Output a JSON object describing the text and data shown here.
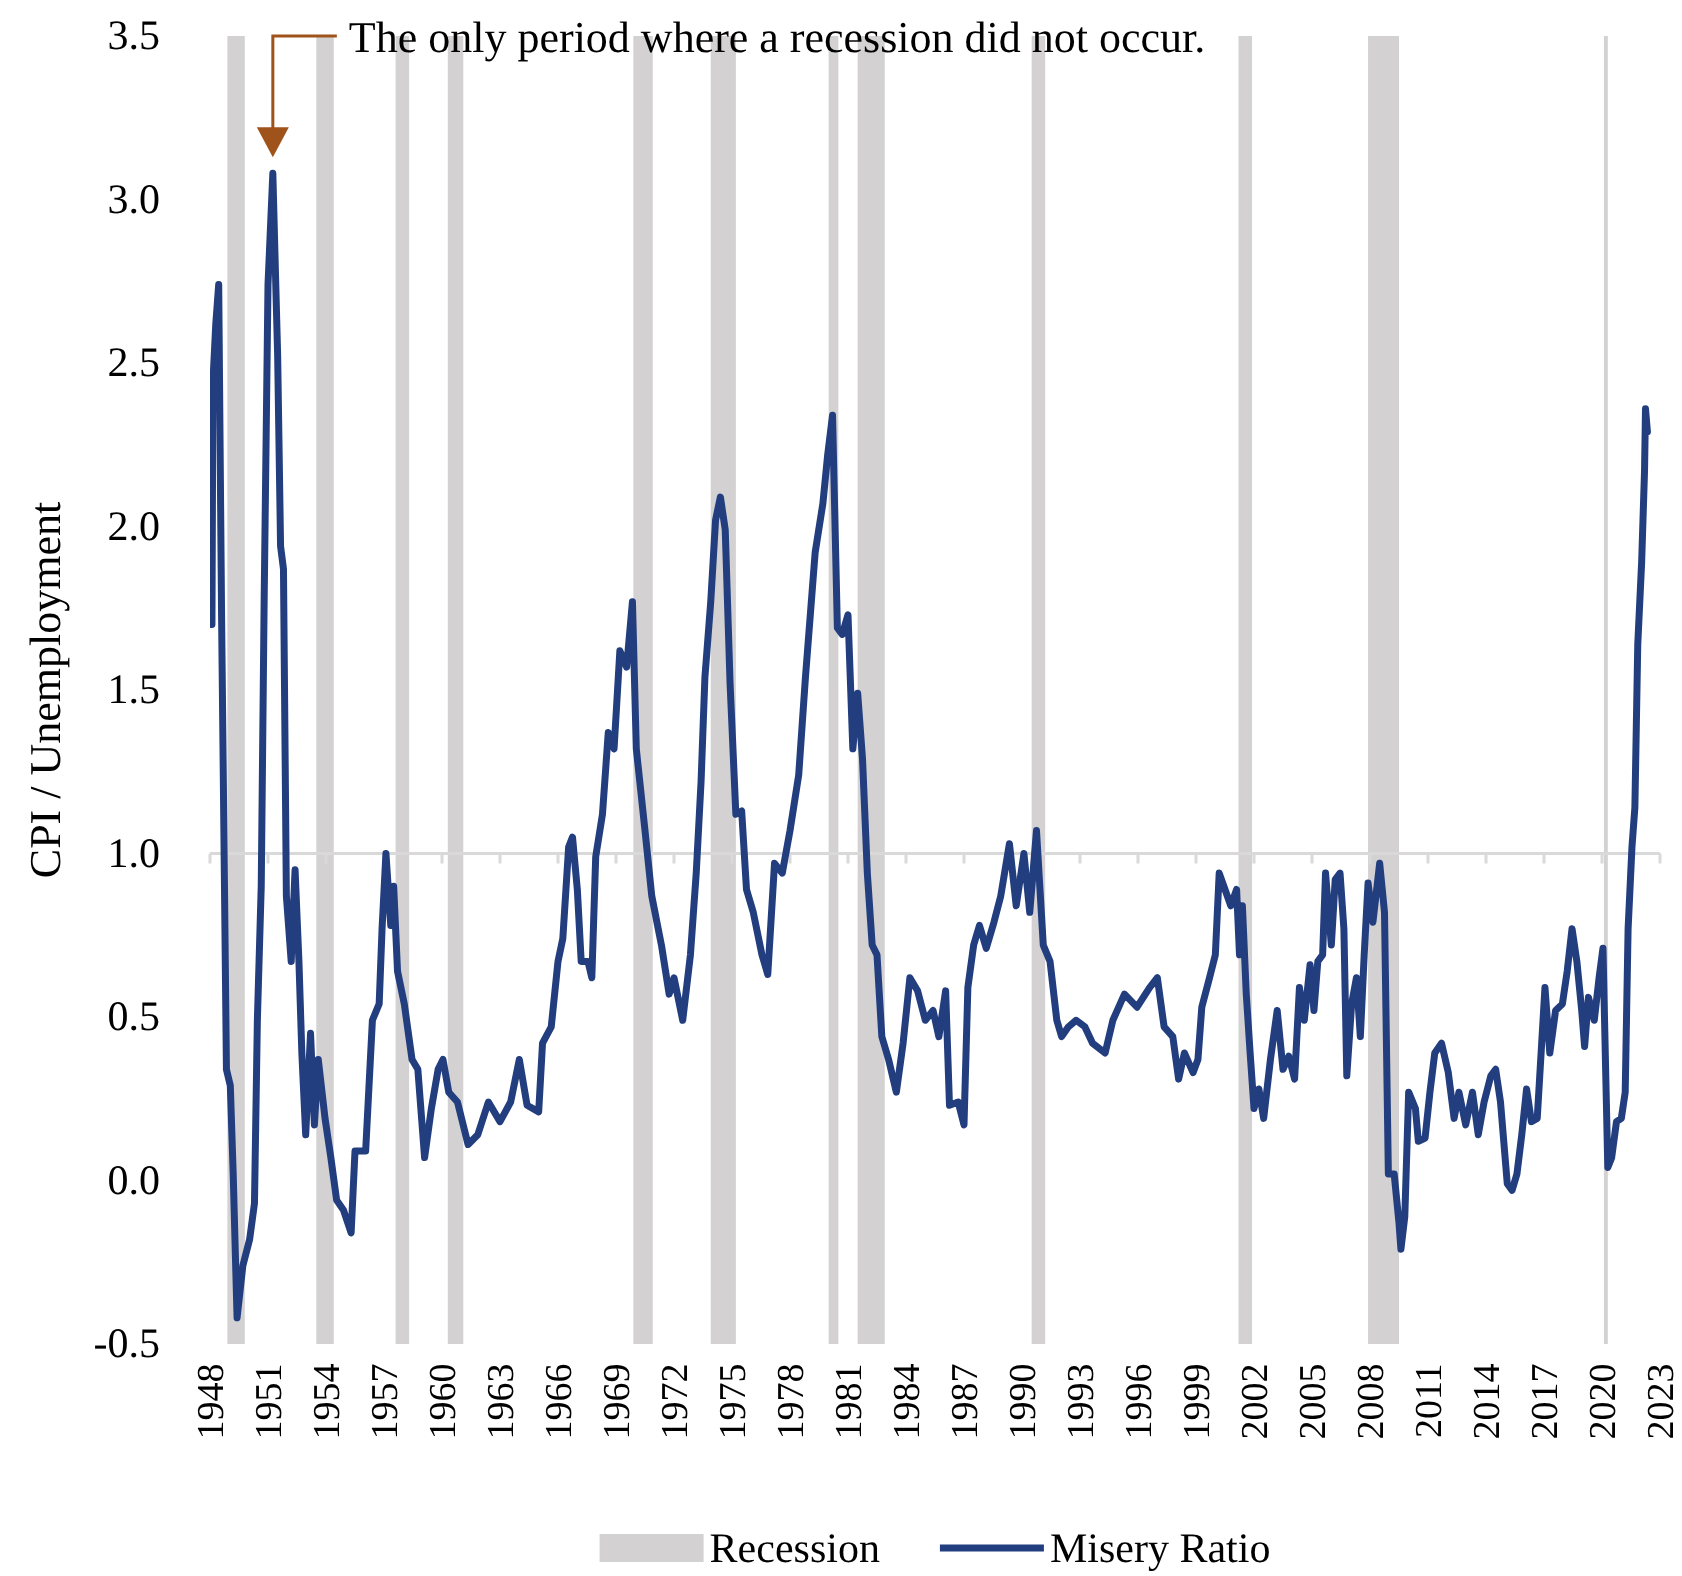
{
  "chart_data": {
    "type": "line",
    "ylabel": "CPI / Unemployment",
    "xlim": [
      1948,
      2023
    ],
    "xticks": [
      1948,
      1951,
      1954,
      1957,
      1960,
      1963,
      1966,
      1969,
      1972,
      1975,
      1978,
      1981,
      1984,
      1987,
      1990,
      1993,
      1996,
      1999,
      2002,
      2005,
      2008,
      2011,
      2014,
      2017,
      2020,
      2023
    ],
    "ylim": [
      -0.5,
      3.5
    ],
    "yticks": [
      {
        "value": -0.5,
        "label": "-0.5"
      },
      {
        "value": 0,
        "label": "0.0"
      },
      {
        "value": 0.5,
        "label": "0.5"
      },
      {
        "value": 1,
        "label": "1.0"
      },
      {
        "value": 1.5,
        "label": "1.5"
      },
      {
        "value": 2,
        "label": "2.0"
      },
      {
        "value": 2.5,
        "label": "2.5"
      },
      {
        "value": 3,
        "label": "3.0"
      },
      {
        "value": 3.5,
        "label": "3.5"
      }
    ],
    "grid": false,
    "legend": "bottom",
    "ref_lines": [
      {
        "axis": "y",
        "value": 1,
        "color": "#d9d9d9"
      }
    ],
    "bands": [
      {
        "axis": "x",
        "from": 1948.9,
        "to": 1949.8,
        "label": "Recession",
        "color": "#d3d1d2"
      },
      {
        "axis": "x",
        "from": 1953.5,
        "to": 1954.4,
        "color": "#d3d1d2"
      },
      {
        "axis": "x",
        "from": 1957.6,
        "to": 1958.3,
        "color": "#d3d1d2"
      },
      {
        "axis": "x",
        "from": 1960.3,
        "to": 1961.1,
        "color": "#d3d1d2"
      },
      {
        "axis": "x",
        "from": 1969.9,
        "to": 1970.9,
        "color": "#d3d1d2"
      },
      {
        "axis": "x",
        "from": 1973.9,
        "to": 1975.2,
        "color": "#d3d1d2"
      },
      {
        "axis": "x",
        "from": 1980.0,
        "to": 1980.5,
        "color": "#d3d1d2"
      },
      {
        "axis": "x",
        "from": 1981.5,
        "to": 1982.9,
        "color": "#d3d1d2"
      },
      {
        "axis": "x",
        "from": 1990.5,
        "to": 1991.2,
        "color": "#d3d1d2"
      },
      {
        "axis": "x",
        "from": 2001.2,
        "to": 2001.9,
        "color": "#d3d1d2"
      },
      {
        "axis": "x",
        "from": 2007.9,
        "to": 2009.5,
        "color": "#d3d1d2"
      },
      {
        "axis": "x",
        "from": 2020.1,
        "to": 2020.3,
        "color": "#d3d1d2"
      }
    ],
    "annotations": [
      "The only period where a recession did not occur."
    ],
    "series": [
      {
        "name": "Misery Ratio",
        "color": "#233e7e",
        "x": [
          1948.1,
          1948.15,
          1948.3,
          1948.45,
          1948.6,
          1948.85,
          1949.05,
          1949.2,
          1949.4,
          1949.7,
          1950.05,
          1950.3,
          1950.45,
          1950.65,
          1950.8,
          1951.0,
          1951.25,
          1951.5,
          1951.65,
          1951.8,
          1951.95,
          1952.2,
          1952.4,
          1952.6,
          1952.75,
          1952.95,
          1953.2,
          1953.4,
          1953.6,
          1953.95,
          1954.25,
          1954.55,
          1954.9,
          1955.3,
          1955.5,
          1956.05,
          1956.4,
          1956.75,
          1956.9,
          1957.1,
          1957.35,
          1957.5,
          1957.7,
          1958.05,
          1958.45,
          1958.75,
          1959.1,
          1959.45,
          1959.8,
          1960.05,
          1960.35,
          1960.8,
          1961.35,
          1961.85,
          1962.4,
          1963.0,
          1963.55,
          1964.0,
          1964.4,
          1965.0,
          1965.2,
          1965.65,
          1966.0,
          1966.25,
          1966.55,
          1966.75,
          1967.0,
          1967.2,
          1967.55,
          1967.75,
          1967.95,
          1968.3,
          1968.6,
          1968.9,
          1969.2,
          1969.55,
          1969.85,
          1970.05,
          1970.5,
          1970.85,
          1971.35,
          1971.75,
          1972.0,
          1972.45,
          1972.85,
          1973.15,
          1973.4,
          1973.6,
          1973.9,
          1974.15,
          1974.4,
          1974.65,
          1974.9,
          1975.2,
          1975.5,
          1975.75,
          1976.1,
          1976.55,
          1976.85,
          1977.2,
          1977.6,
          1978.0,
          1978.45,
          1978.8,
          1979.3,
          1979.7,
          1979.95,
          1980.2,
          1980.45,
          1980.7,
          1981.0,
          1981.25,
          1981.5,
          1981.75,
          1982.0,
          1982.25,
          1982.5,
          1982.75,
          1983.1,
          1983.5,
          1983.85,
          1984.2,
          1984.6,
          1985.0,
          1985.4,
          1985.7,
          1986.05,
          1986.25,
          1986.7,
          1987.0,
          1987.2,
          1987.5,
          1987.8,
          1988.15,
          1988.55,
          1988.9,
          1989.35,
          1989.7,
          1990.1,
          1990.4,
          1990.75,
          1991.1,
          1991.45,
          1991.8,
          1992.05,
          1992.4,
          1992.8,
          1993.25,
          1993.65,
          1994.3,
          1994.7,
          1995.3,
          1995.95,
          1996.6,
          1997.0,
          1997.35,
          1997.8,
          1998.1,
          1998.4,
          1998.85,
          1999.1,
          1999.3,
          1999.7,
          2000.0,
          2000.2,
          2000.5,
          2000.8,
          2001.1,
          2001.25,
          2001.4,
          2001.6,
          2001.8,
          2002.0,
          2002.25,
          2002.5,
          2002.85,
          2003.2,
          2003.5,
          2003.8,
          2004.1,
          2004.35,
          2004.6,
          2004.9,
          2005.1,
          2005.3,
          2005.55,
          2005.7,
          2006.0,
          2006.2,
          2006.45,
          2006.65,
          2006.8,
          2007.05,
          2007.3,
          2007.5,
          2007.7,
          2007.9,
          2008.15,
          2008.5,
          2008.75,
          2008.95,
          2009.25,
          2009.5,
          2009.6,
          2009.8,
          2010.0,
          2010.35,
          2010.5,
          2010.85,
          2011.1,
          2011.35,
          2011.7,
          2012.05,
          2012.35,
          2012.6,
          2012.95,
          2013.3,
          2013.6,
          2013.9,
          2014.25,
          2014.5,
          2014.75,
          2015.1,
          2015.35,
          2015.6,
          2015.85,
          2016.1,
          2016.35,
          2016.65,
          2016.85,
          2017.05,
          2017.3,
          2017.6,
          2017.95,
          2018.2,
          2018.45,
          2018.7,
          2018.95,
          2019.1,
          2019.3,
          2019.6,
          2019.85,
          2020.05,
          2020.3,
          2020.5,
          2020.75,
          2021.0,
          2021.2,
          2021.35,
          2021.55,
          2021.7,
          2021.85,
          2022.05,
          2022.2,
          2022.25,
          2022.35
        ],
        "values": [
          1.7,
          2.44,
          2.62,
          2.74,
          1.72,
          0.34,
          0.29,
          0.02,
          -0.42,
          -0.26,
          -0.18,
          -0.07,
          0.49,
          0.9,
          1.77,
          2.74,
          3.08,
          2.52,
          1.94,
          1.87,
          0.87,
          0.67,
          0.95,
          0.67,
          0.39,
          0.14,
          0.45,
          0.17,
          0.37,
          0.19,
          0.07,
          -0.06,
          -0.09,
          -0.16,
          0.09,
          0.09,
          0.49,
          0.54,
          0.77,
          1.0,
          0.78,
          0.9,
          0.64,
          0.54,
          0.37,
          0.34,
          0.07,
          0.22,
          0.34,
          0.37,
          0.27,
          0.24,
          0.11,
          0.14,
          0.24,
          0.18,
          0.24,
          0.37,
          0.23,
          0.21,
          0.42,
          0.47,
          0.67,
          0.74,
          1.02,
          1.05,
          0.89,
          0.67,
          0.67,
          0.62,
          0.99,
          1.12,
          1.37,
          1.32,
          1.62,
          1.57,
          1.77,
          1.32,
          1.07,
          0.87,
          0.72,
          0.57,
          0.62,
          0.49,
          0.69,
          0.94,
          1.22,
          1.54,
          1.77,
          2.02,
          2.09,
          1.99,
          1.52,
          1.12,
          1.13,
          0.89,
          0.82,
          0.69,
          0.63,
          0.97,
          0.94,
          1.07,
          1.24,
          1.54,
          1.92,
          2.07,
          2.22,
          2.34,
          1.69,
          1.67,
          1.73,
          1.32,
          1.49,
          1.29,
          0.94,
          0.72,
          0.69,
          0.44,
          0.37,
          0.27,
          0.42,
          0.62,
          0.58,
          0.49,
          0.52,
          0.44,
          0.58,
          0.23,
          0.24,
          0.17,
          0.59,
          0.72,
          0.78,
          0.71,
          0.79,
          0.87,
          1.03,
          0.84,
          1.0,
          0.82,
          1.07,
          0.72,
          0.67,
          0.49,
          0.44,
          0.47,
          0.49,
          0.47,
          0.42,
          0.39,
          0.49,
          0.57,
          0.53,
          0.59,
          0.62,
          0.47,
          0.44,
          0.31,
          0.39,
          0.33,
          0.37,
          0.53,
          0.62,
          0.69,
          0.94,
          0.89,
          0.84,
          0.89,
          0.69,
          0.84,
          0.57,
          0.39,
          0.22,
          0.28,
          0.19,
          0.37,
          0.52,
          0.34,
          0.38,
          0.31,
          0.59,
          0.49,
          0.66,
          0.52,
          0.67,
          0.69,
          0.94,
          0.72,
          0.92,
          0.94,
          0.77,
          0.32,
          0.54,
          0.62,
          0.44,
          0.69,
          0.91,
          0.79,
          0.97,
          0.82,
          0.02,
          0.02,
          -0.13,
          -0.21,
          -0.11,
          0.27,
          0.22,
          0.12,
          0.13,
          0.27,
          0.39,
          0.42,
          0.33,
          0.19,
          0.27,
          0.17,
          0.27,
          0.14,
          0.24,
          0.32,
          0.34,
          0.24,
          -0.01,
          -0.03,
          0.02,
          0.14,
          0.28,
          0.18,
          0.19,
          0.39,
          0.59,
          0.39,
          0.52,
          0.54,
          0.64,
          0.77,
          0.67,
          0.52,
          0.41,
          0.56,
          0.49,
          0.62,
          0.71,
          0.04,
          0.07,
          0.18,
          0.19,
          0.27,
          0.77,
          1.02,
          1.14,
          1.64,
          1.89,
          2.17,
          2.36,
          2.29
        ]
      }
    ]
  }
}
